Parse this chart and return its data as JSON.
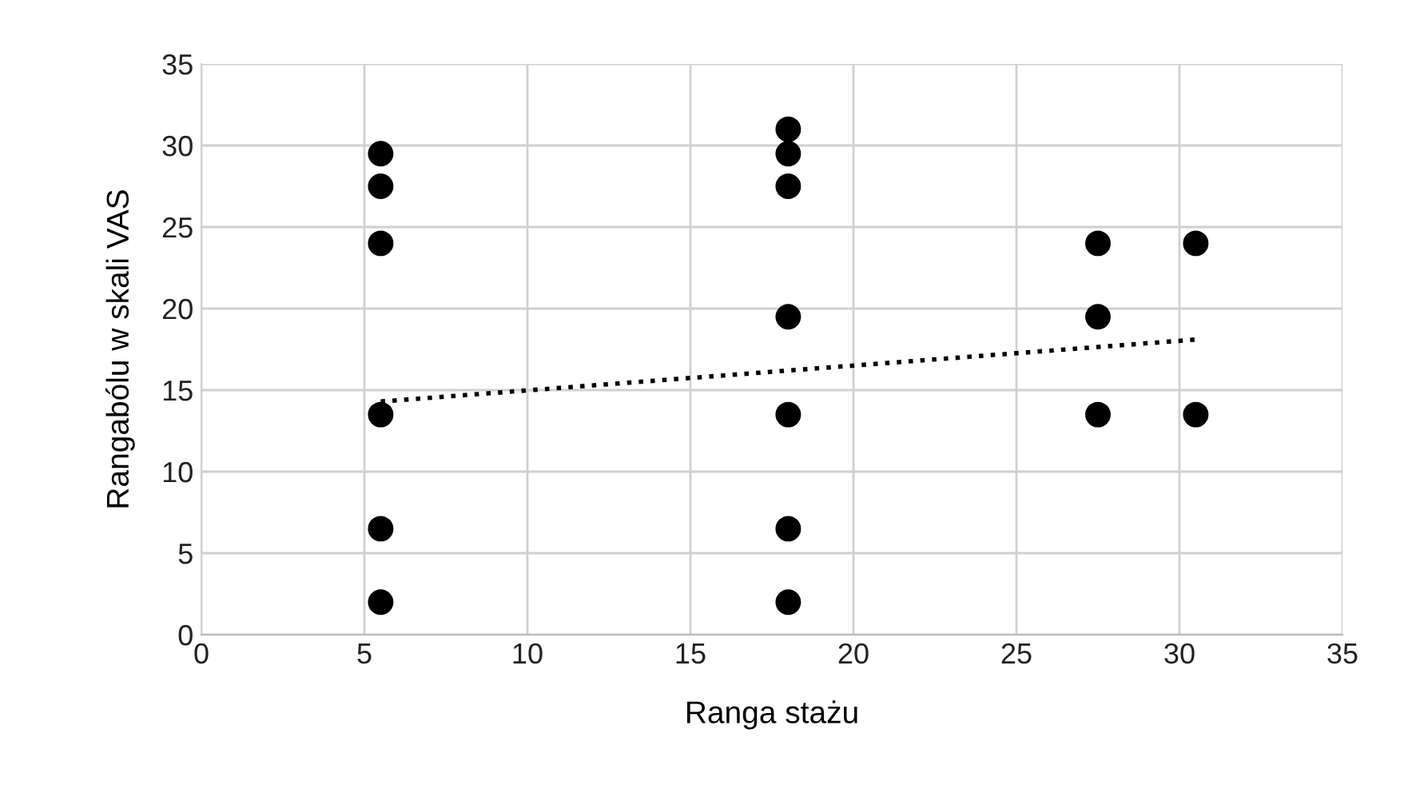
{
  "chart_data": {
    "type": "scatter",
    "xlabel": "Ranga stażu",
    "ylabel": "Rangabólu w skali VAS",
    "xlim": [
      0,
      35
    ],
    "ylim": [
      0,
      35
    ],
    "xticks": [
      0,
      5,
      10,
      15,
      20,
      25,
      30,
      35
    ],
    "yticks": [
      0,
      5,
      10,
      15,
      20,
      25,
      30,
      35
    ],
    "grid": true,
    "marker": "circle",
    "legend": false,
    "series": [
      {
        "color": "#000000",
        "x": [
          5.5,
          5.5,
          5.5,
          5.5,
          5.5,
          5.5,
          18,
          18,
          18,
          18,
          18,
          18,
          18,
          27.5,
          27.5,
          27.5,
          30.5,
          30.5
        ],
        "values": [
          29.5,
          27.5,
          24,
          13.5,
          6.5,
          2,
          31,
          29.5,
          27.5,
          19.5,
          13.5,
          6.5,
          2,
          24,
          19.5,
          13.5,
          24,
          13.5
        ]
      },
      {
        "type": "line",
        "color": "#000000",
        "line_style": "dotted",
        "marker": "none",
        "x": [
          5.5,
          30.5
        ],
        "values": [
          14.3,
          18.1
        ]
      }
    ]
  }
}
